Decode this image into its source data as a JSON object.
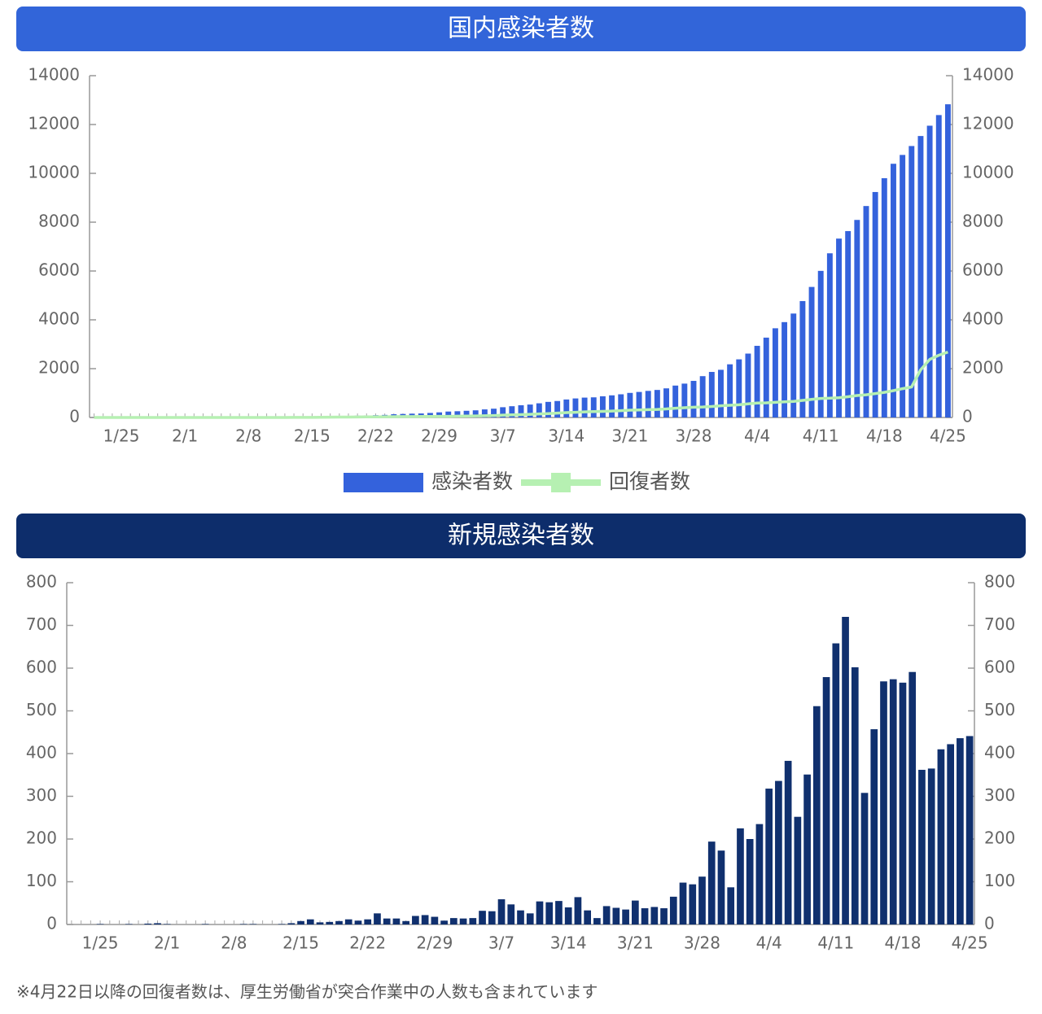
{
  "chart_data": [
    {
      "type": "bar",
      "title": "国内感染者数",
      "categories": [
        null,
        null,
        null,
        "1/25",
        null,
        null,
        null,
        null,
        null,
        null,
        "2/1",
        null,
        null,
        null,
        null,
        null,
        null,
        "2/8",
        null,
        null,
        null,
        null,
        null,
        null,
        "2/15",
        null,
        null,
        null,
        null,
        null,
        null,
        "2/22",
        null,
        null,
        null,
        null,
        null,
        null,
        "2/29",
        null,
        null,
        null,
        null,
        null,
        null,
        "3/7",
        null,
        null,
        null,
        null,
        null,
        null,
        "3/14",
        null,
        null,
        null,
        null,
        null,
        null,
        "3/21",
        null,
        null,
        null,
        null,
        null,
        null,
        "3/28",
        null,
        null,
        null,
        null,
        null,
        null,
        "4/4",
        null,
        null,
        null,
        null,
        null,
        null,
        "4/11",
        null,
        null,
        null,
        null,
        null,
        null,
        "4/18",
        null,
        null,
        null,
        null,
        null,
        null,
        "4/25"
      ],
      "series": [
        {
          "name": "感染者数",
          "type": "bar",
          "color": "#3462dc",
          "values": [
            1,
            1,
            1,
            2,
            3,
            4,
            7,
            8,
            11,
            14,
            17,
            20,
            20,
            20,
            22,
            24,
            25,
            25,
            26,
            27,
            28,
            28,
            29,
            29,
            33,
            41,
            53,
            59,
            65,
            73,
            84,
            93,
            105,
            132,
            144,
            156,
            164,
            186,
            210,
            243,
            256,
            274,
            293,
            331,
            360,
            420,
            461,
            502,
            530,
            581,
            639,
            675,
            737,
            780,
            814,
            825,
            868,
            907,
            950,
            1007,
            1046,
            1089,
            1128,
            1193,
            1307,
            1387,
            1499,
            1693,
            1866,
            1953,
            2178,
            2381,
            2617,
            2935,
            3271,
            3654,
            3906,
            4257,
            4768,
            5347,
            6005,
            6725,
            7327,
            7635,
            8092,
            8661,
            9235,
            9801,
            10392,
            10754,
            11119,
            11529,
            11951,
            12387,
            12829
          ]
        },
        {
          "name": "回復者数",
          "type": "line",
          "color": "#b6f0b2",
          "values": [
            0,
            0,
            0,
            0,
            0,
            0,
            0,
            0,
            0,
            0,
            0,
            0,
            0,
            0,
            0,
            0,
            0,
            0,
            0,
            0,
            1,
            1,
            2,
            2,
            5,
            10,
            12,
            15,
            18,
            20,
            22,
            25,
            30,
            32,
            35,
            35,
            40,
            42,
            46,
            46,
            55,
            60,
            65,
            70,
            80,
            95,
            110,
            118,
            130,
            145,
            160,
            180,
            200,
            215,
            230,
            240,
            250,
            265,
            280,
            300,
            310,
            320,
            330,
            350,
            380,
            400,
            420,
            430,
            450,
            480,
            500,
            520,
            560,
            590,
            600,
            620,
            640,
            660,
            700,
            740,
            780,
            790,
            810,
            850,
            900,
            930,
            980,
            1030,
            1100,
            1180,
            1250,
            1950,
            2380,
            2550,
            2680
          ]
        }
      ],
      "ylim": [
        0,
        14000
      ],
      "yticks": [
        0,
        2000,
        4000,
        6000,
        8000,
        10000,
        12000,
        14000
      ],
      "y2lim": [
        0,
        14000
      ],
      "y2ticks": [
        0,
        2000,
        4000,
        6000,
        8000,
        10000,
        12000,
        14000
      ],
      "legend": "bottom"
    },
    {
      "type": "bar",
      "title": "新規感染者数",
      "categories": [
        null,
        null,
        null,
        "1/25",
        null,
        null,
        null,
        null,
        null,
        null,
        "2/1",
        null,
        null,
        null,
        null,
        null,
        null,
        "2/8",
        null,
        null,
        null,
        null,
        null,
        null,
        "2/15",
        null,
        null,
        null,
        null,
        null,
        null,
        "2/22",
        null,
        null,
        null,
        null,
        null,
        null,
        "2/29",
        null,
        null,
        null,
        null,
        null,
        null,
        "3/7",
        null,
        null,
        null,
        null,
        null,
        null,
        "3/14",
        null,
        null,
        null,
        null,
        null,
        null,
        "3/21",
        null,
        null,
        null,
        null,
        null,
        null,
        "3/28",
        null,
        null,
        null,
        null,
        null,
        null,
        "4/4",
        null,
        null,
        null,
        null,
        null,
        null,
        "4/11",
        null,
        null,
        null,
        null,
        null,
        null,
        "4/18",
        null,
        null,
        null,
        null,
        null,
        null,
        "4/25"
      ],
      "series": [
        {
          "type": "bar",
          "color": "#10306e",
          "values": [
            0,
            0,
            0,
            1,
            0,
            0,
            1,
            0,
            2,
            3,
            1,
            0,
            0,
            0,
            1,
            0,
            0,
            0,
            1,
            1,
            0,
            0,
            1,
            3,
            8,
            12,
            5,
            6,
            8,
            12,
            9,
            12,
            26,
            14,
            14,
            8,
            20,
            22,
            18,
            9,
            15,
            14,
            15,
            32,
            31,
            59,
            47,
            33,
            26,
            54,
            52,
            55,
            40,
            64,
            33,
            15,
            43,
            39,
            35,
            56,
            38,
            41,
            38,
            65,
            98,
            94,
            112,
            194,
            173,
            87,
            225,
            200,
            235,
            318,
            336,
            383,
            252,
            351,
            511,
            579,
            658,
            720,
            602,
            308,
            457,
            569,
            574,
            566,
            591,
            362,
            365,
            410,
            422,
            436,
            441
          ]
        }
      ],
      "ylim": [
        0,
        800
      ],
      "yticks": [
        0,
        100,
        200,
        300,
        400,
        500,
        600,
        700,
        800
      ],
      "y2lim": [
        0,
        800
      ],
      "y2ticks": [
        0,
        100,
        200,
        300,
        400,
        500,
        600,
        700,
        800
      ]
    }
  ],
  "note": "※4月22日以降の回復者数は、厚生労働省が突合作業中の人数も含まれています"
}
